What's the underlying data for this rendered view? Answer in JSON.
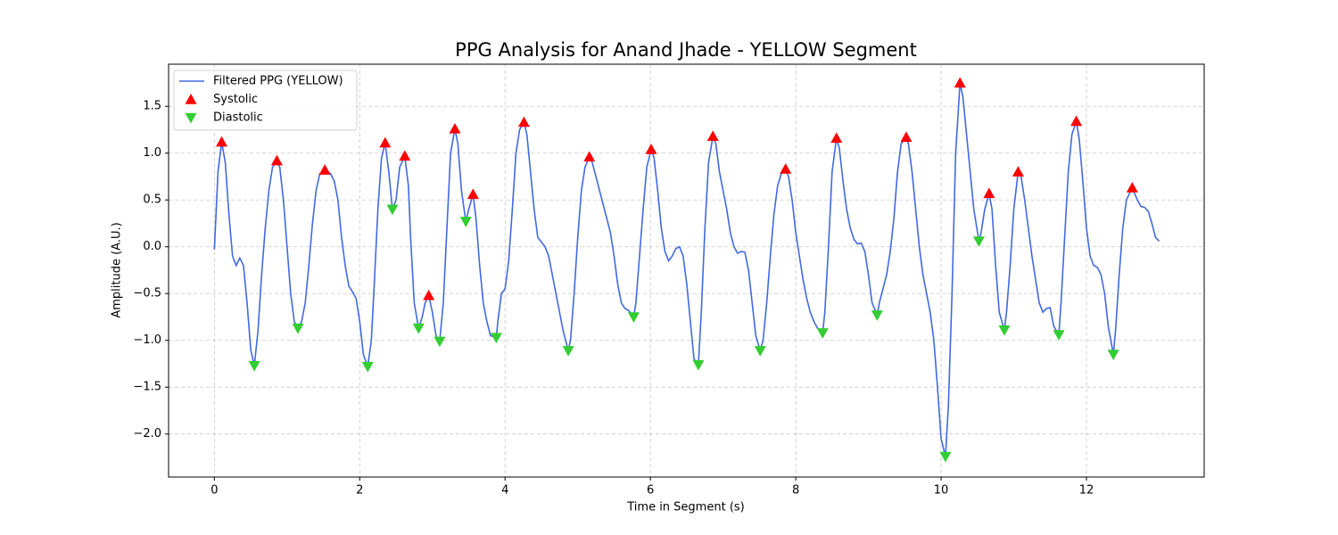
{
  "chart_data": {
    "type": "line",
    "title": "PPG Analysis for Anand Jhade - YELLOW Segment",
    "xlabel": "Time in Segment (s)",
    "ylabel": "Amplitude (A.U.)",
    "xlim": [
      -0.63,
      13.62
    ],
    "ylim": [
      -2.46,
      1.95
    ],
    "xticks": [
      0,
      2,
      4,
      6,
      8,
      10,
      12
    ],
    "yticks": [
      {
        "value": -2,
        "label": "−2.0"
      },
      {
        "value": -1.5,
        "label": "−1.5"
      },
      {
        "value": -1,
        "label": "−1.0"
      },
      {
        "value": -0.5,
        "label": "−0.5"
      },
      {
        "value": 0,
        "label": "0.0"
      },
      {
        "value": 0.5,
        "label": "0.5"
      },
      {
        "value": 1,
        "label": "1.0"
      },
      {
        "value": 1.5,
        "label": "1.5"
      }
    ],
    "grid": true,
    "legend": "upper left",
    "series": [
      {
        "name": "Filtered PPG (YELLOW)",
        "kind": "line",
        "color": "#4169e1",
        "x": [
          0,
          0.05,
          0.1,
          0.15,
          0.2,
          0.25,
          0.3,
          0.35,
          0.4,
          0.45,
          0.5,
          0.55,
          0.6,
          0.65,
          0.7,
          0.75,
          0.8,
          0.86,
          0.9,
          0.95,
          1.0,
          1.05,
          1.1,
          1.15,
          1.2,
          1.25,
          1.3,
          1.35,
          1.4,
          1.45,
          1.52,
          1.6,
          1.65,
          1.7,
          1.75,
          1.8,
          1.85,
          1.9,
          1.95,
          2.0,
          2.05,
          2.11,
          2.16,
          2.2,
          2.25,
          2.3,
          2.35,
          2.4,
          2.45,
          2.5,
          2.55,
          2.62,
          2.67,
          2.7,
          2.75,
          2.81,
          2.86,
          2.9,
          2.95,
          3.0,
          3.05,
          3.1,
          3.15,
          3.2,
          3.25,
          3.31,
          3.35,
          3.4,
          3.46,
          3.5,
          3.56,
          3.6,
          3.65,
          3.7,
          3.75,
          3.8,
          3.88,
          3.9,
          3.95,
          4.0,
          4.05,
          4.1,
          4.15,
          4.2,
          4.26,
          4.3,
          4.35,
          4.4,
          4.45,
          4.5,
          4.55,
          4.6,
          4.65,
          4.7,
          4.75,
          4.8,
          4.87,
          4.9,
          4.95,
          5.0,
          5.05,
          5.1,
          5.16,
          5.2,
          5.25,
          5.3,
          5.35,
          5.4,
          5.45,
          5.5,
          5.55,
          5.6,
          5.65,
          5.7,
          5.77,
          5.8,
          5.85,
          5.9,
          5.95,
          6.01,
          6.05,
          6.1,
          6.15,
          6.2,
          6.25,
          6.3,
          6.35,
          6.4,
          6.45,
          6.5,
          6.55,
          6.6,
          6.66,
          6.7,
          6.75,
          6.8,
          6.86,
          6.9,
          6.95,
          7.0,
          7.05,
          7.1,
          7.15,
          7.2,
          7.25,
          7.3,
          7.35,
          7.4,
          7.45,
          7.51,
          7.55,
          7.6,
          7.65,
          7.7,
          7.75,
          7.8,
          7.86,
          7.9,
          7.95,
          8.0,
          8.05,
          8.1,
          8.15,
          8.2,
          8.25,
          8.3,
          8.37,
          8.4,
          8.45,
          8.5,
          8.56,
          8.6,
          8.65,
          8.7,
          8.75,
          8.8,
          8.85,
          8.9,
          8.95,
          9.0,
          9.05,
          9.12,
          9.15,
          9.2,
          9.25,
          9.3,
          9.35,
          9.4,
          9.45,
          9.52,
          9.55,
          9.6,
          9.65,
          9.7,
          9.75,
          9.8,
          9.85,
          9.9,
          9.95,
          10.0,
          10.06,
          10.1,
          10.15,
          10.2,
          10.26,
          10.3,
          10.35,
          10.4,
          10.45,
          10.52,
          10.55,
          10.6,
          10.66,
          10.7,
          10.75,
          10.8,
          10.87,
          10.9,
          10.95,
          11.0,
          11.06,
          11.1,
          11.15,
          11.2,
          11.25,
          11.3,
          11.35,
          11.4,
          11.45,
          11.5,
          11.55,
          11.62,
          11.65,
          11.7,
          11.75,
          11.8,
          11.86,
          11.9,
          11.95,
          12.0,
          12.05,
          12.1,
          12.15,
          12.2,
          12.25,
          12.3,
          12.37,
          12.4,
          12.45,
          12.5,
          12.55,
          12.63,
          12.7,
          12.75,
          12.8,
          12.85,
          12.9,
          12.95,
          13.0
        ],
        "values": [
          -0.03,
          0.8,
          1.12,
          0.9,
          0.35,
          -0.1,
          -0.2,
          -0.12,
          -0.2,
          -0.6,
          -1.1,
          -1.27,
          -0.9,
          -0.3,
          0.2,
          0.6,
          0.85,
          0.92,
          0.85,
          0.5,
          0.0,
          -0.5,
          -0.8,
          -0.87,
          -0.8,
          -0.6,
          -0.2,
          0.25,
          0.6,
          0.78,
          0.82,
          0.78,
          0.7,
          0.5,
          0.1,
          -0.2,
          -0.42,
          -0.48,
          -0.55,
          -0.8,
          -1.15,
          -1.28,
          -1.0,
          -0.4,
          0.4,
          0.95,
          1.11,
          0.8,
          0.4,
          0.5,
          0.85,
          0.97,
          0.65,
          0.1,
          -0.6,
          -0.87,
          -0.75,
          -0.6,
          -0.52,
          -0.7,
          -0.95,
          -1.01,
          -0.6,
          0.2,
          1.0,
          1.26,
          1.1,
          0.6,
          0.27,
          0.4,
          0.56,
          0.3,
          -0.2,
          -0.6,
          -0.8,
          -0.95,
          -0.97,
          -0.8,
          -0.5,
          -0.45,
          -0.15,
          0.4,
          1.0,
          1.25,
          1.33,
          1.2,
          0.8,
          0.4,
          0.1,
          0.05,
          0.0,
          -0.1,
          -0.3,
          -0.5,
          -0.7,
          -0.9,
          -1.11,
          -1.0,
          -0.5,
          0.1,
          0.6,
          0.85,
          0.96,
          0.9,
          0.75,
          0.6,
          0.45,
          0.3,
          0.15,
          -0.1,
          -0.4,
          -0.6,
          -0.66,
          -0.68,
          -0.75,
          -0.6,
          -0.1,
          0.4,
          0.85,
          1.04,
          0.95,
          0.6,
          0.2,
          -0.05,
          -0.15,
          -0.1,
          -0.02,
          0.0,
          -0.1,
          -0.4,
          -0.8,
          -1.2,
          -1.26,
          -0.7,
          0.2,
          0.9,
          1.18,
          1.1,
          0.8,
          0.6,
          0.4,
          0.15,
          0.0,
          -0.07,
          -0.05,
          -0.06,
          -0.25,
          -0.6,
          -0.95,
          -1.11,
          -1.0,
          -0.6,
          -0.1,
          0.35,
          0.65,
          0.78,
          0.83,
          0.75,
          0.5,
          0.15,
          -0.1,
          -0.35,
          -0.55,
          -0.7,
          -0.8,
          -0.87,
          -0.92,
          -0.7,
          0.0,
          0.8,
          1.16,
          1.05,
          0.7,
          0.4,
          0.2,
          0.08,
          0.03,
          0.04,
          -0.05,
          -0.3,
          -0.6,
          -0.73,
          -0.6,
          -0.45,
          -0.3,
          -0.05,
          0.3,
          0.8,
          1.1,
          1.17,
          1.1,
          0.8,
          0.4,
          0.0,
          -0.3,
          -0.5,
          -0.7,
          -1.0,
          -1.5,
          -2.05,
          -2.24,
          -1.7,
          -0.5,
          1.0,
          1.75,
          1.6,
          1.2,
          0.8,
          0.4,
          0.06,
          0.15,
          0.4,
          0.57,
          0.4,
          -0.2,
          -0.7,
          -0.89,
          -0.7,
          -0.2,
          0.4,
          0.8,
          0.75,
          0.5,
          0.2,
          -0.1,
          -0.35,
          -0.6,
          -0.7,
          -0.66,
          -0.65,
          -0.85,
          -0.94,
          -0.6,
          0.1,
          0.8,
          1.2,
          1.34,
          1.15,
          0.7,
          0.2,
          -0.1,
          -0.2,
          -0.22,
          -0.3,
          -0.5,
          -0.85,
          -1.15,
          -0.9,
          -0.3,
          0.2,
          0.5,
          0.63,
          0.5,
          0.43,
          0.42,
          0.38,
          0.25,
          0.1,
          0.06
        ]
      },
      {
        "name": "Systolic",
        "kind": "scatter",
        "marker": "up",
        "color": "#ff0000",
        "x": [
          0.1,
          0.86,
          1.52,
          2.35,
          2.62,
          2.95,
          3.31,
          3.56,
          4.26,
          5.16,
          6.01,
          6.86,
          7.86,
          8.56,
          9.52,
          10.26,
          10.66,
          11.06,
          11.86,
          12.63
        ],
        "values": [
          1.12,
          0.92,
          0.82,
          1.11,
          0.97,
          -0.52,
          1.26,
          0.56,
          1.33,
          0.96,
          1.04,
          1.18,
          0.83,
          1.16,
          1.17,
          1.75,
          0.57,
          0.8,
          1.34,
          0.63
        ]
      },
      {
        "name": "Diastolic",
        "kind": "scatter",
        "marker": "down",
        "color": "#32cd32",
        "x": [
          0.55,
          1.15,
          2.11,
          2.45,
          2.81,
          3.1,
          3.46,
          3.88,
          4.87,
          5.77,
          6.66,
          7.51,
          8.37,
          9.12,
          10.06,
          10.52,
          10.87,
          11.62,
          12.37
        ],
        "values": [
          -1.27,
          -0.87,
          -1.28,
          0.4,
          -0.87,
          -1.01,
          0.27,
          -0.97,
          -1.11,
          -0.75,
          -1.26,
          -1.11,
          -0.92,
          -0.73,
          -2.24,
          0.06,
          -0.89,
          -0.94,
          -1.15
        ]
      }
    ]
  }
}
